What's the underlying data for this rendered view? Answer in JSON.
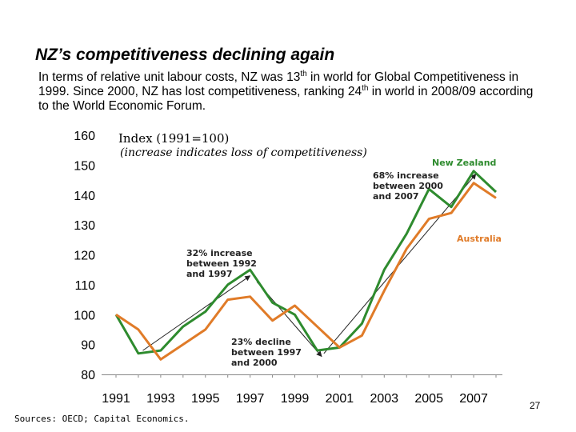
{
  "page": {
    "title": "NZ’s competitiveness declining again",
    "subtitle": {
      "part1": "In terms of relative unit labour costs, NZ was 13",
      "sup1": "th",
      "part2": " in world for Global Competitiveness in 1999.  Since 2000, NZ has lost competitiveness, ranking 24",
      "sup2": "th",
      "part3": " in world in 2008/09 according to the World Economic Forum."
    },
    "source": "Sources:  OECD; Capital Economics.",
    "page_number": "27"
  },
  "chart_data": {
    "type": "line",
    "title": "Index (1991=100)",
    "subtitle": "(increase indicates loss of competitiveness)",
    "xlabel": "",
    "ylabel": "",
    "xlim": [
      1991,
      2008.5
    ],
    "ylim": [
      80,
      160
    ],
    "yticks": [
      "80",
      "90",
      "100",
      "110",
      "120",
      "130",
      "140",
      "150",
      "160"
    ],
    "xticks": [
      "1991",
      "1993",
      "1995",
      "1997",
      "1999",
      "2001",
      "2003",
      "2005",
      "2007"
    ],
    "grid": false,
    "series": [
      {
        "name": "New Zealand",
        "color": "#2e8b2e",
        "points": [
          [
            1991,
            100
          ],
          [
            1992,
            87
          ],
          [
            1993,
            88
          ],
          [
            1994,
            96
          ],
          [
            1995,
            101
          ],
          [
            1996,
            110
          ],
          [
            1997,
            115
          ],
          [
            1998,
            104
          ],
          [
            1999,
            100
          ],
          [
            2000,
            88
          ],
          [
            2001,
            89
          ],
          [
            2002,
            97
          ],
          [
            2003,
            115
          ],
          [
            2004,
            127
          ],
          [
            2005,
            142
          ],
          [
            2006,
            136
          ],
          [
            2007,
            148
          ],
          [
            2008,
            141
          ]
        ]
      },
      {
        "name": "Australia",
        "color": "#e07b28",
        "points": [
          [
            1991,
            100
          ],
          [
            1992,
            95
          ],
          [
            1993,
            85
          ],
          [
            1994,
            90
          ],
          [
            1995,
            95
          ],
          [
            1996,
            105
          ],
          [
            1997,
            106
          ],
          [
            1998,
            98
          ],
          [
            1999,
            103
          ],
          [
            2000,
            96
          ],
          [
            2001,
            89
          ],
          [
            2002,
            93
          ],
          [
            2003,
            108
          ],
          [
            2004,
            122
          ],
          [
            2005,
            132
          ],
          [
            2006,
            134
          ],
          [
            2007,
            144
          ],
          [
            2008,
            139
          ]
        ]
      }
    ],
    "annotations": [
      {
        "text": [
          "32% increase",
          "between 1992",
          "and 1997"
        ],
        "from": [
          1992.2,
          88
        ],
        "to": [
          1997,
          113
        ]
      },
      {
        "text": [
          "23% decline",
          "between 1997",
          "and 2000"
        ],
        "from": [
          1997.3,
          111
        ],
        "to": [
          2000.2,
          86
        ]
      },
      {
        "text": [
          "68% increase",
          "between 2000",
          "and 2007"
        ],
        "from": [
          2000.3,
          87
        ],
        "to": [
          2007.1,
          147
        ]
      }
    ]
  }
}
